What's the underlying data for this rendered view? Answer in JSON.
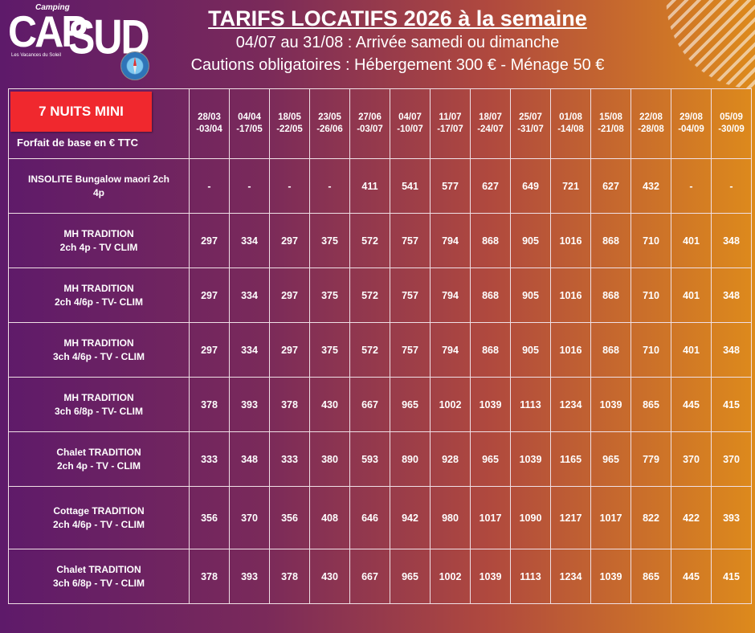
{
  "logo": {
    "camping": "Camping",
    "cap": "CAP",
    "sud": "SUD",
    "tagline": "Les Vacances du Soleil"
  },
  "header": {
    "title": "TARIFS LOCATIFS 2026 à la semaine",
    "subtitle": "04/07 au 31/08 : Arrivée samedi ou dimanche",
    "subtitle2": "Cautions obligatoires : Hébergement 300 € - Ménage 50 €"
  },
  "badge": "7 NUITS MINI",
  "corner_label": "Forfait de base en € TTC",
  "periods": [
    [
      "28/03",
      "-03/04"
    ],
    [
      "04/04",
      "-17/05"
    ],
    [
      "18/05",
      "-22/05"
    ],
    [
      "23/05",
      "-26/06"
    ],
    [
      "27/06",
      "-03/07"
    ],
    [
      "04/07",
      "-10/07"
    ],
    [
      "11/07",
      "-17/07"
    ],
    [
      "18/07",
      "-24/07"
    ],
    [
      "25/07",
      "-31/07"
    ],
    [
      "01/08",
      "-14/08"
    ],
    [
      "15/08",
      "-21/08"
    ],
    [
      "22/08",
      "-28/08"
    ],
    [
      "29/08",
      "-04/09"
    ],
    [
      "05/09",
      "-30/09"
    ]
  ],
  "rows": [
    {
      "name": [
        "INSOLITE Bungalow maori 2ch",
        "4p"
      ],
      "prices": [
        "-",
        "-",
        "-",
        "-",
        "411",
        "541",
        "577",
        "627",
        "649",
        "721",
        "627",
        "432",
        "-",
        "-"
      ]
    },
    {
      "name": [
        "MH TRADITION",
        "2ch 4p - TV CLIM"
      ],
      "prices": [
        "297",
        "334",
        "297",
        "375",
        "572",
        "757",
        "794",
        "868",
        "905",
        "1016",
        "868",
        "710",
        "401",
        "348"
      ]
    },
    {
      "name": [
        "MH TRADITION",
        "2ch 4/6p - TV- CLIM"
      ],
      "prices": [
        "297",
        "334",
        "297",
        "375",
        "572",
        "757",
        "794",
        "868",
        "905",
        "1016",
        "868",
        "710",
        "401",
        "348"
      ]
    },
    {
      "name": [
        "MH TRADITION",
        "3ch 4/6p - TV - CLIM"
      ],
      "prices": [
        "297",
        "334",
        "297",
        "375",
        "572",
        "757",
        "794",
        "868",
        "905",
        "1016",
        "868",
        "710",
        "401",
        "348"
      ]
    },
    {
      "name": [
        "MH TRADITION",
        "3ch 6/8p - TV- CLIM"
      ],
      "prices": [
        "378",
        "393",
        "378",
        "430",
        "667",
        "965",
        "1002",
        "1039",
        "1113",
        "1234",
        "1039",
        "865",
        "445",
        "415"
      ]
    },
    {
      "name": [
        "Chalet TRADITION",
        "2ch 4p - TV - CLIM"
      ],
      "prices": [
        "333",
        "348",
        "333",
        "380",
        "593",
        "890",
        "928",
        "965",
        "1039",
        "1165",
        "965",
        "779",
        "370",
        "370"
      ]
    },
    {
      "name": [
        "Cottage TRADITION",
        "2ch 4/6p - TV - CLIM"
      ],
      "prices": [
        "356",
        "370",
        "356",
        "408",
        "646",
        "942",
        "980",
        "1017",
        "1090",
        "1217",
        "1017",
        "822",
        "422",
        "393"
      ]
    },
    {
      "name": [
        "Chalet TRADITION",
        "3ch 6/8p - TV - CLIM"
      ],
      "prices": [
        "378",
        "393",
        "378",
        "430",
        "667",
        "965",
        "1002",
        "1039",
        "1113",
        "1234",
        "1039",
        "865",
        "445",
        "415"
      ]
    }
  ]
}
